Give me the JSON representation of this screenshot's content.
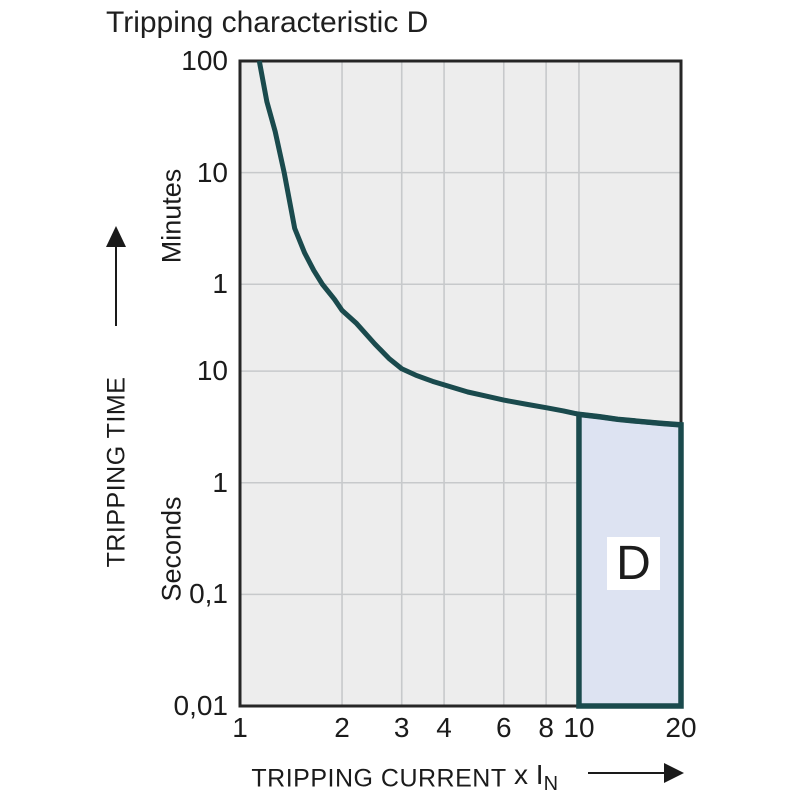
{
  "title": "Tripping characteristic D",
  "colors": {
    "curve": "#1a4a4d",
    "region_fill": "#dde3f2",
    "region_border": "#1a4a4d",
    "plot_background": "#ededed",
    "grid": "#c7c9cb",
    "frame": "#262626",
    "text": "#1b1b1b"
  },
  "y_axis": {
    "name": "TRIPPING TIME",
    "units": [
      "Minutes",
      "Seconds"
    ],
    "ticks": [
      {
        "label": "100",
        "seconds": 6000
      },
      {
        "label": "10",
        "seconds": 600
      },
      {
        "label": "1",
        "seconds": 60
      },
      {
        "label": "10",
        "seconds": 10
      },
      {
        "label": "1",
        "seconds": 1
      },
      {
        "label": "0,1",
        "seconds": 0.1
      },
      {
        "label": "0,01",
        "seconds": 0.01
      }
    ]
  },
  "x_axis": {
    "name": "TRIPPING CURRENT",
    "multiplier": "x I",
    "multiplier_sub": "N",
    "ticks": [
      {
        "label": "1",
        "value": 1
      },
      {
        "label": "2",
        "value": 2
      },
      {
        "label": "3",
        "value": 3
      },
      {
        "label": "4",
        "value": 4
      },
      {
        "label": "6",
        "value": 6
      },
      {
        "label": "8",
        "value": 8
      },
      {
        "label": "10",
        "value": 10
      },
      {
        "label": "20",
        "value": 20
      }
    ]
  },
  "chart_data": {
    "type": "line",
    "title": "Tripping characteristic D",
    "xlabel": "TRIPPING CURRENT x IN",
    "ylabel": "TRIPPING TIME",
    "x_scale": "log",
    "y_scale": "log",
    "xlim": [
      1,
      20
    ],
    "ylim_seconds": [
      0.01,
      6000
    ],
    "grid": true,
    "series": [
      {
        "name": "tripping-curve",
        "units": [
          "multiple of rated current",
          "seconds"
        ],
        "points": [
          [
            1.14,
            6000
          ],
          [
            1.2,
            2600
          ],
          [
            1.27,
            1400
          ],
          [
            1.35,
            600
          ],
          [
            1.45,
            190
          ],
          [
            1.55,
            115
          ],
          [
            1.65,
            80
          ],
          [
            1.75,
            60
          ],
          [
            1.9,
            44
          ],
          [
            2.0,
            35
          ],
          [
            2.2,
            27
          ],
          [
            2.5,
            17.5
          ],
          [
            2.75,
            13
          ],
          [
            3.0,
            10.5
          ],
          [
            3.3,
            9.2
          ],
          [
            3.7,
            8.1
          ],
          [
            4.2,
            7.2
          ],
          [
            4.7,
            6.5
          ],
          [
            5.3,
            6.0
          ],
          [
            6.0,
            5.5
          ],
          [
            7.0,
            5.05
          ],
          [
            8.0,
            4.7
          ],
          [
            9.0,
            4.4
          ],
          [
            10.0,
            4.1
          ],
          [
            11.5,
            3.9
          ],
          [
            13.0,
            3.7
          ],
          [
            15.0,
            3.55
          ],
          [
            17.5,
            3.4
          ],
          [
            20.0,
            3.3
          ]
        ]
      }
    ],
    "region": {
      "label": "D",
      "x_range": [
        10,
        20
      ],
      "y_bottom_seconds": 0.01,
      "top_follows_curve": true
    }
  }
}
